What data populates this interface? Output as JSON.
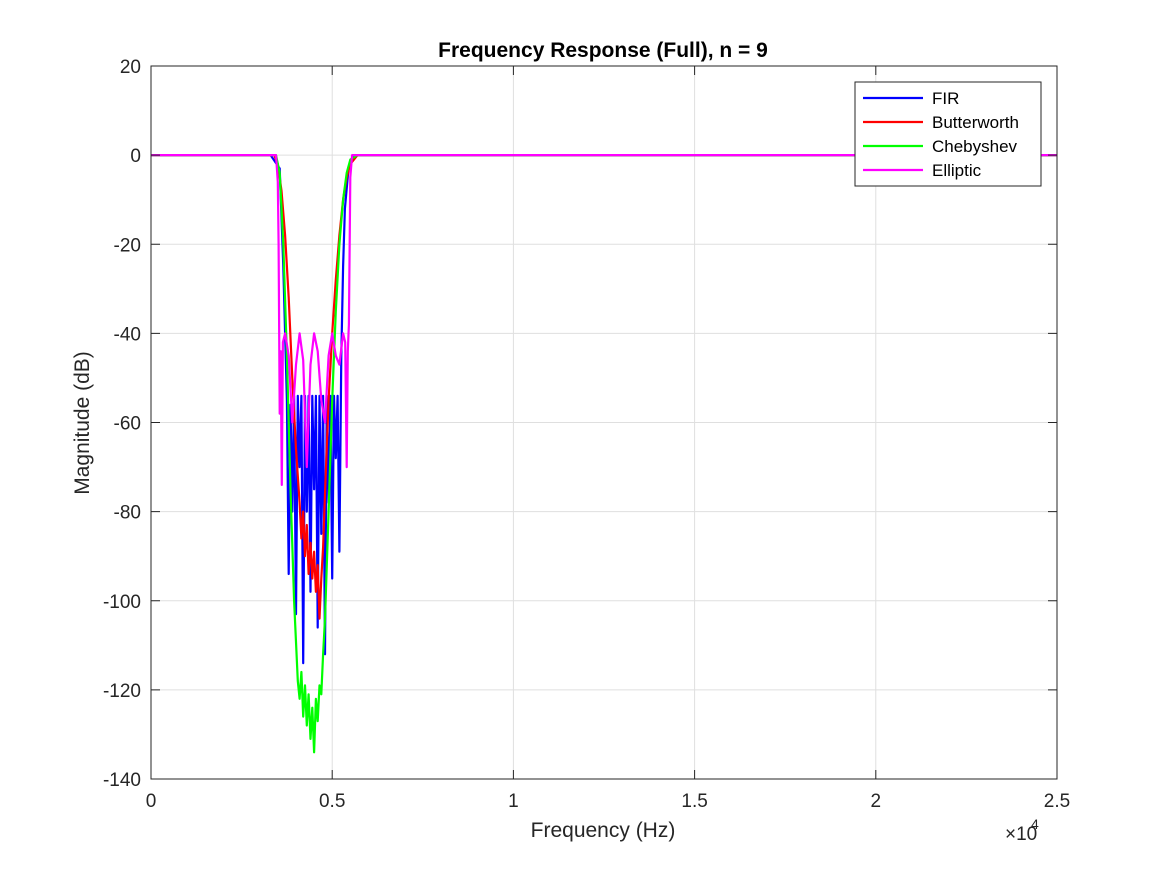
{
  "chart_data": {
    "type": "line",
    "title": "Frequency Response (Full), n = 9",
    "xlabel": "Frequency (Hz)",
    "ylabel": "Magnitude (dB)",
    "xlim": [
      0,
      25000
    ],
    "ylim": [
      -140,
      20
    ],
    "x_exponent_label": "×10",
    "x_exponent_power": "4",
    "x_ticks": [
      0,
      5000,
      10000,
      15000,
      20000,
      25000
    ],
    "x_tick_labels": [
      "0",
      "0.5",
      "1",
      "1.5",
      "2",
      "2.5"
    ],
    "y_ticks": [
      20,
      0,
      -20,
      -40,
      -60,
      -80,
      -100,
      -120,
      -140
    ],
    "y_tick_labels": [
      "20",
      "0",
      "-20",
      "-40",
      "-60",
      "-80",
      "-100",
      "-120",
      "-140"
    ],
    "grid": true,
    "legend_position": "top-right",
    "series": [
      {
        "name": "FIR",
        "color": "#0000ff",
        "x": [
          0,
          3300,
          3550,
          3650,
          3750,
          3800,
          3850,
          3900,
          3950,
          4000,
          4050,
          4100,
          4150,
          4200,
          4250,
          4300,
          4350,
          4400,
          4450,
          4500,
          4550,
          4600,
          4650,
          4700,
          4750,
          4800,
          4850,
          4900,
          4950,
          5000,
          5050,
          5100,
          5150,
          5200,
          5250,
          5300,
          5350,
          5450,
          5600,
          25000
        ],
        "y": [
          0,
          0,
          -3,
          -25,
          -55,
          -94,
          -56,
          -80,
          -54,
          -103,
          -54,
          -70,
          -54,
          -114,
          -54,
          -80,
          -54,
          -98,
          -54,
          -75,
          -54,
          -106,
          -54,
          -85,
          -54,
          -112,
          -54,
          -78,
          -54,
          -95,
          -54,
          -68,
          -54,
          -89,
          -45,
          -25,
          -12,
          -3,
          0,
          0
        ]
      },
      {
        "name": "Butterworth",
        "color": "#ff0000",
        "x": [
          0,
          3400,
          3500,
          3600,
          3700,
          3800,
          3900,
          4000,
          4100,
          4150,
          4200,
          4250,
          4300,
          4350,
          4400,
          4450,
          4500,
          4550,
          4600,
          4650,
          4700,
          4750,
          4800,
          4900,
          5000,
          5100,
          5200,
          5300,
          5400,
          5500,
          5700,
          25000
        ],
        "y": [
          0,
          0,
          -2,
          -8,
          -18,
          -32,
          -50,
          -66,
          -78,
          -86,
          -80,
          -90,
          -83,
          -94,
          -87,
          -95,
          -89,
          -98,
          -92,
          -104,
          -95,
          -88,
          -76,
          -55,
          -40,
          -28,
          -18,
          -10,
          -5,
          -2,
          0,
          0
        ]
      },
      {
        "name": "Chebyshev",
        "color": "#00ff00",
        "x": [
          0,
          3450,
          3550,
          3650,
          3750,
          3850,
          3950,
          4050,
          4100,
          4150,
          4200,
          4250,
          4300,
          4350,
          4400,
          4450,
          4500,
          4550,
          4600,
          4650,
          4700,
          4750,
          4800,
          4900,
          5000,
          5100,
          5200,
          5300,
          5400,
          5500,
          5700,
          25000
        ],
        "y": [
          0,
          0,
          -4,
          -20,
          -45,
          -75,
          -100,
          -118,
          -122,
          -116,
          -126,
          -119,
          -128,
          -121,
          -131,
          -124,
          -134,
          -122,
          -127,
          -119,
          -121,
          -112,
          -104,
          -80,
          -55,
          -35,
          -20,
          -10,
          -4,
          -1,
          0,
          0
        ]
      },
      {
        "name": "Elliptic",
        "color": "#ff00ff",
        "x": [
          0,
          3450,
          3500,
          3520,
          3550,
          3580,
          3610,
          3640,
          3700,
          3800,
          3900,
          4000,
          4100,
          4200,
          4300,
          4400,
          4500,
          4600,
          4700,
          4800,
          4900,
          5000,
          5100,
          5200,
          5300,
          5360,
          5400,
          5430,
          5460,
          5500,
          5550,
          25000
        ],
        "y": [
          0,
          0,
          -6,
          -20,
          -58,
          -44,
          -74,
          -42,
          -40,
          -45,
          -60,
          -47,
          -40,
          -46,
          -70,
          -47,
          -40,
          -44,
          -55,
          -60,
          -45,
          -40,
          -45,
          -47,
          -40,
          -42,
          -70,
          -44,
          -38,
          -5,
          0,
          0
        ]
      }
    ]
  }
}
